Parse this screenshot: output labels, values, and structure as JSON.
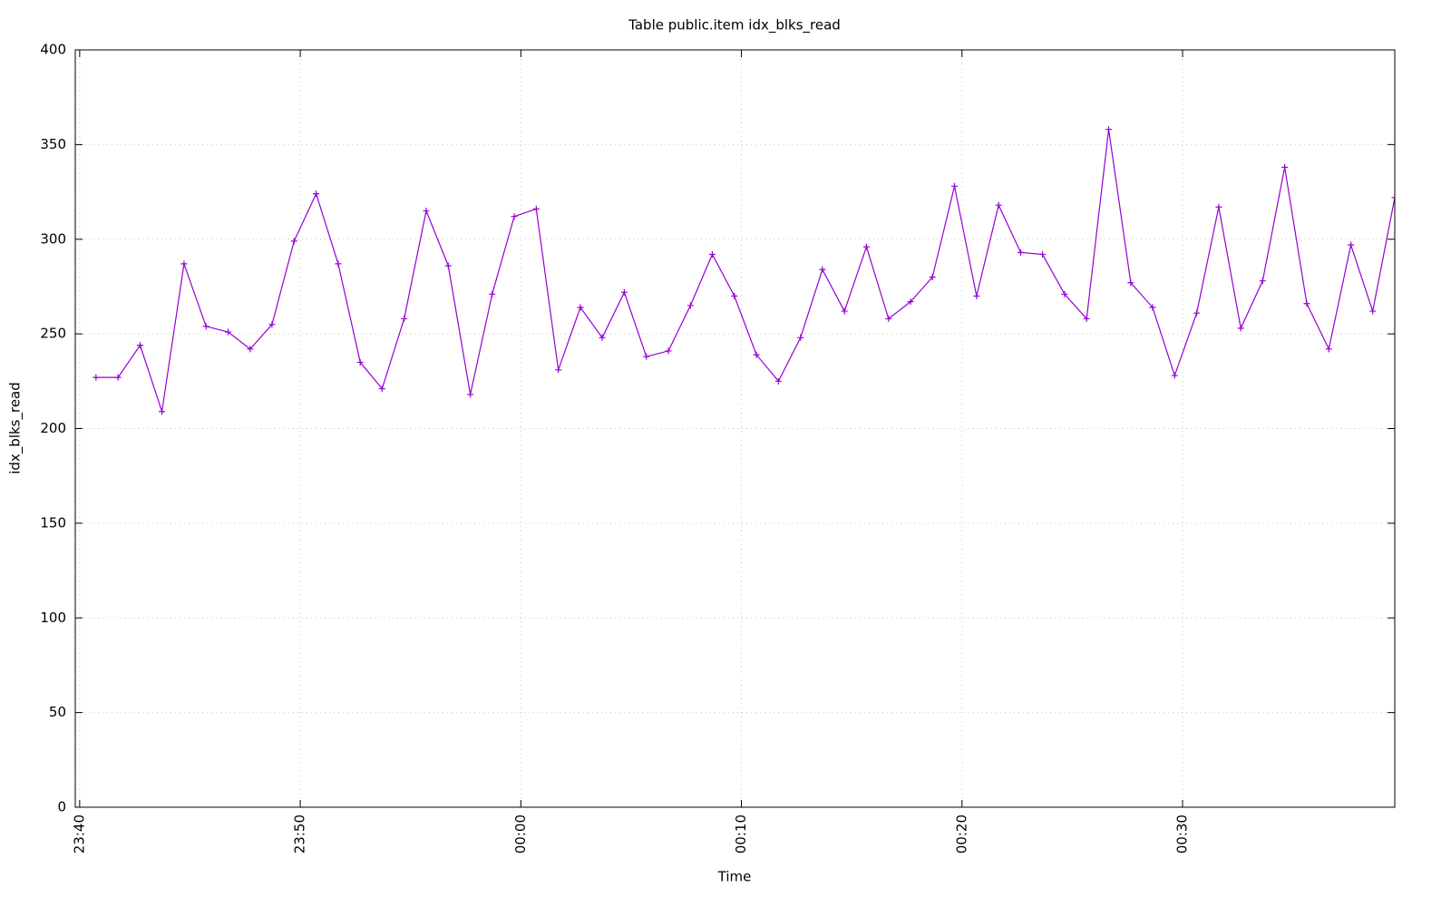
{
  "chart_data": {
    "type": "line",
    "title": "Table public.item idx_blks_read",
    "x_label": "Time",
    "y_label": "idx_blks_read",
    "x": [
      0.74,
      1.74,
      2.74,
      3.73,
      4.73,
      5.73,
      6.73,
      7.73,
      8.72,
      9.72,
      10.72,
      11.72,
      12.72,
      13.71,
      14.71,
      15.71,
      16.71,
      17.71,
      18.7,
      19.7,
      20.7,
      21.7,
      22.7,
      23.69,
      24.69,
      25.69,
      26.69,
      27.69,
      28.68,
      29.68,
      30.68,
      31.68,
      32.68,
      33.67,
      34.67,
      35.67,
      36.67,
      37.67,
      38.66,
      39.66,
      40.66,
      41.66,
      42.66,
      43.65,
      44.65,
      45.65,
      46.65,
      47.65,
      48.64,
      49.64,
      50.64,
      51.64,
      52.64,
      53.63,
      54.63,
      55.63,
      56.63,
      57.63,
      58.62,
      59.62
    ],
    "series": [
      {
        "name": "idx_blks_read",
        "color": "#9400d3",
        "values": [
          227,
          227,
          244,
          209,
          287,
          254,
          251,
          242,
          255,
          299,
          324,
          287,
          235,
          221,
          258,
          315,
          286,
          218,
          271,
          312,
          316,
          231,
          264,
          248,
          272,
          238,
          241,
          265,
          292,
          270,
          239,
          225,
          248,
          284,
          262,
          296,
          258,
          267,
          280,
          328,
          270,
          318,
          293,
          292,
          271,
          258,
          358,
          277,
          264,
          228,
          261,
          317,
          253,
          278,
          338,
          266,
          242,
          297,
          262,
          322
        ]
      }
    ],
    "xlim": [
      -0.2,
      59.62
    ],
    "xticks": [
      {
        "value": 0,
        "label": "23:40"
      },
      {
        "value": 10,
        "label": "23:50"
      },
      {
        "value": 20,
        "label": "00:00"
      },
      {
        "value": 30,
        "label": "00:10"
      },
      {
        "value": 40,
        "label": "00:20"
      },
      {
        "value": 50,
        "label": "00:30"
      }
    ],
    "ylim": [
      0,
      400
    ],
    "yticks": [
      0,
      50,
      100,
      150,
      200,
      250,
      300,
      350,
      400
    ],
    "grid": true
  }
}
